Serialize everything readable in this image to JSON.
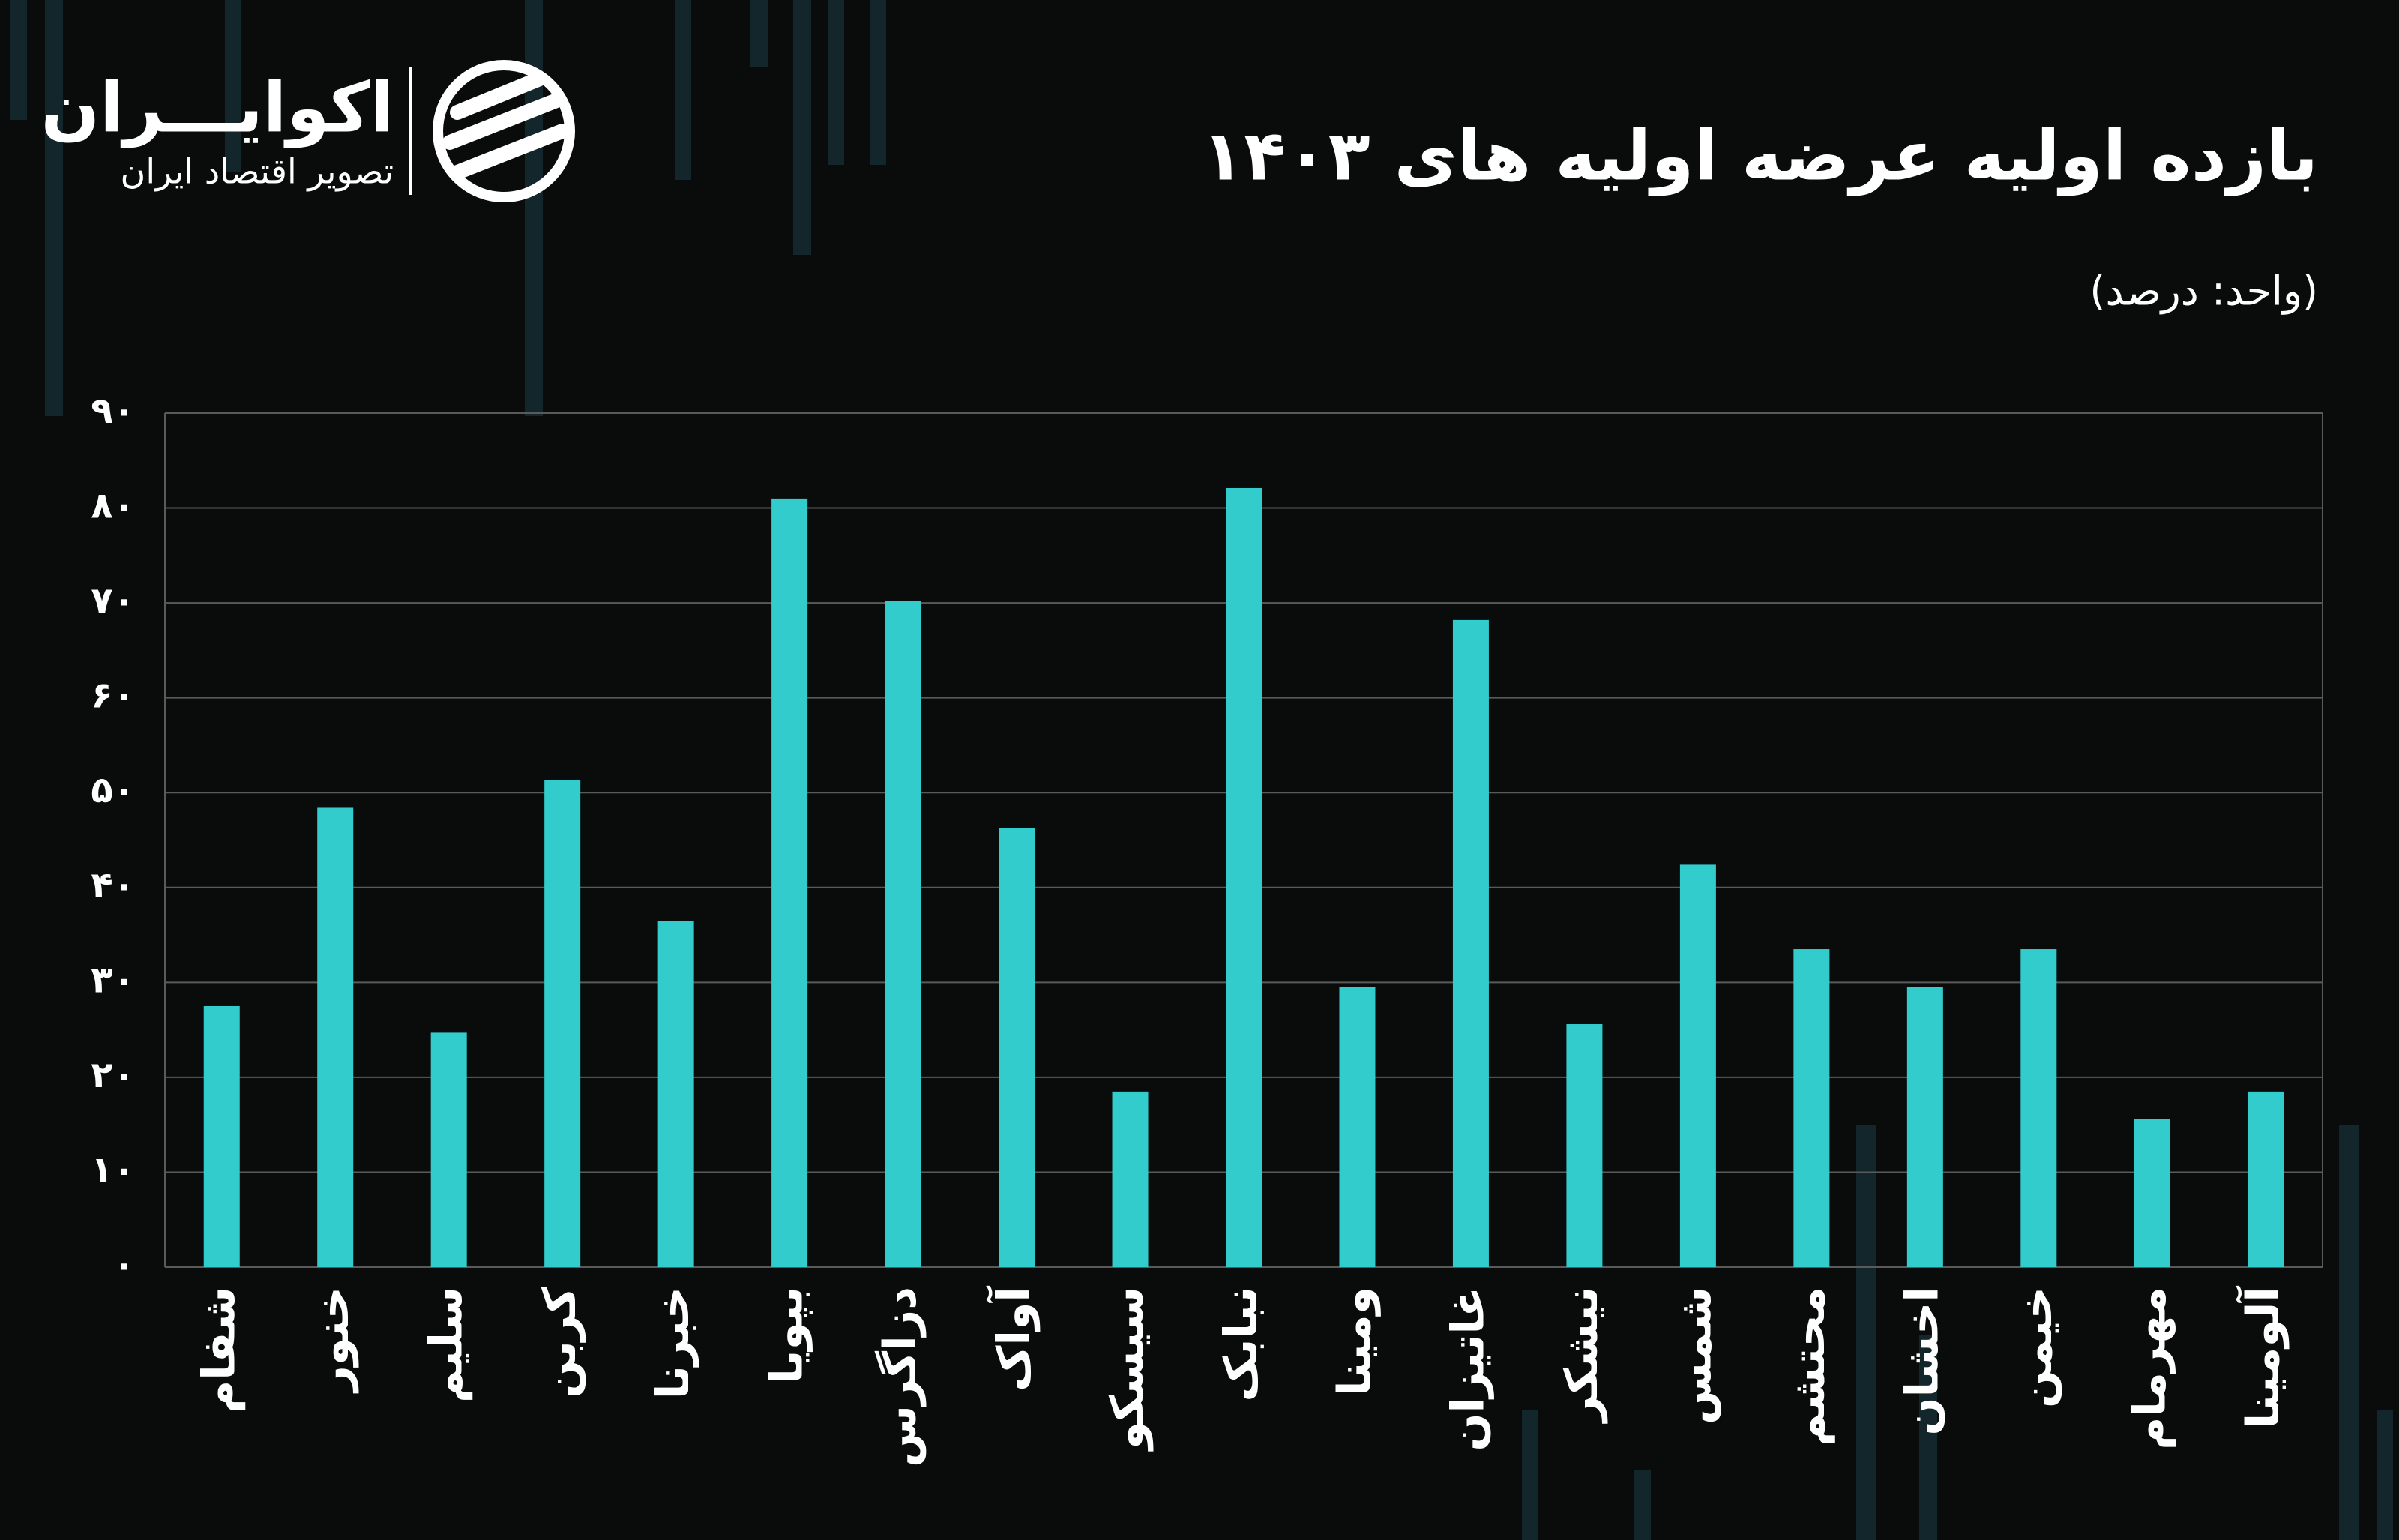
{
  "logo": {
    "name": "اکوایـــران",
    "tagline": "تصویر اقتصاد ایران"
  },
  "chart_data": {
    "type": "bar",
    "title": "بازده اولیه عرضه اولیه های ۱۴۰۳",
    "subtitle": "(واحد: درصد)",
    "categories": [
      "شفام",
      "خنور",
      "سلیم",
      "کربن",
      "خبرنا",
      "بپویا",
      "دزاگرس",
      "آواک",
      "سیسکو",
      "نبابک",
      "ومینا",
      "غاتیزان",
      "نیشکر",
      "شمس",
      "محتشم",
      "اخشان",
      "خیمن",
      "مهرمام",
      "آلومینا"
    ],
    "values": [
      27.5,
      48.4,
      24.7,
      51.3,
      36.5,
      81,
      70.2,
      46.3,
      18.5,
      82.1,
      29.5,
      68.2,
      25.6,
      42.4,
      33.5,
      29.5,
      33.5,
      15.6,
      18.5
    ],
    "color": "#33cccc",
    "ylim": [
      0,
      90
    ],
    "yticks": [
      {
        "value": 0,
        "label": "۰"
      },
      {
        "value": 10,
        "label": "۱۰"
      },
      {
        "value": 20,
        "label": "۲۰"
      },
      {
        "value": 30,
        "label": "۳۰"
      },
      {
        "value": 40,
        "label": "۴۰"
      },
      {
        "value": 50,
        "label": "۵۰"
      },
      {
        "value": 60,
        "label": "۶۰"
      },
      {
        "value": 70,
        "label": "۷۰"
      },
      {
        "value": 80,
        "label": "۸۰"
      },
      {
        "value": 90,
        "label": "۹۰"
      }
    ],
    "grid": true
  }
}
